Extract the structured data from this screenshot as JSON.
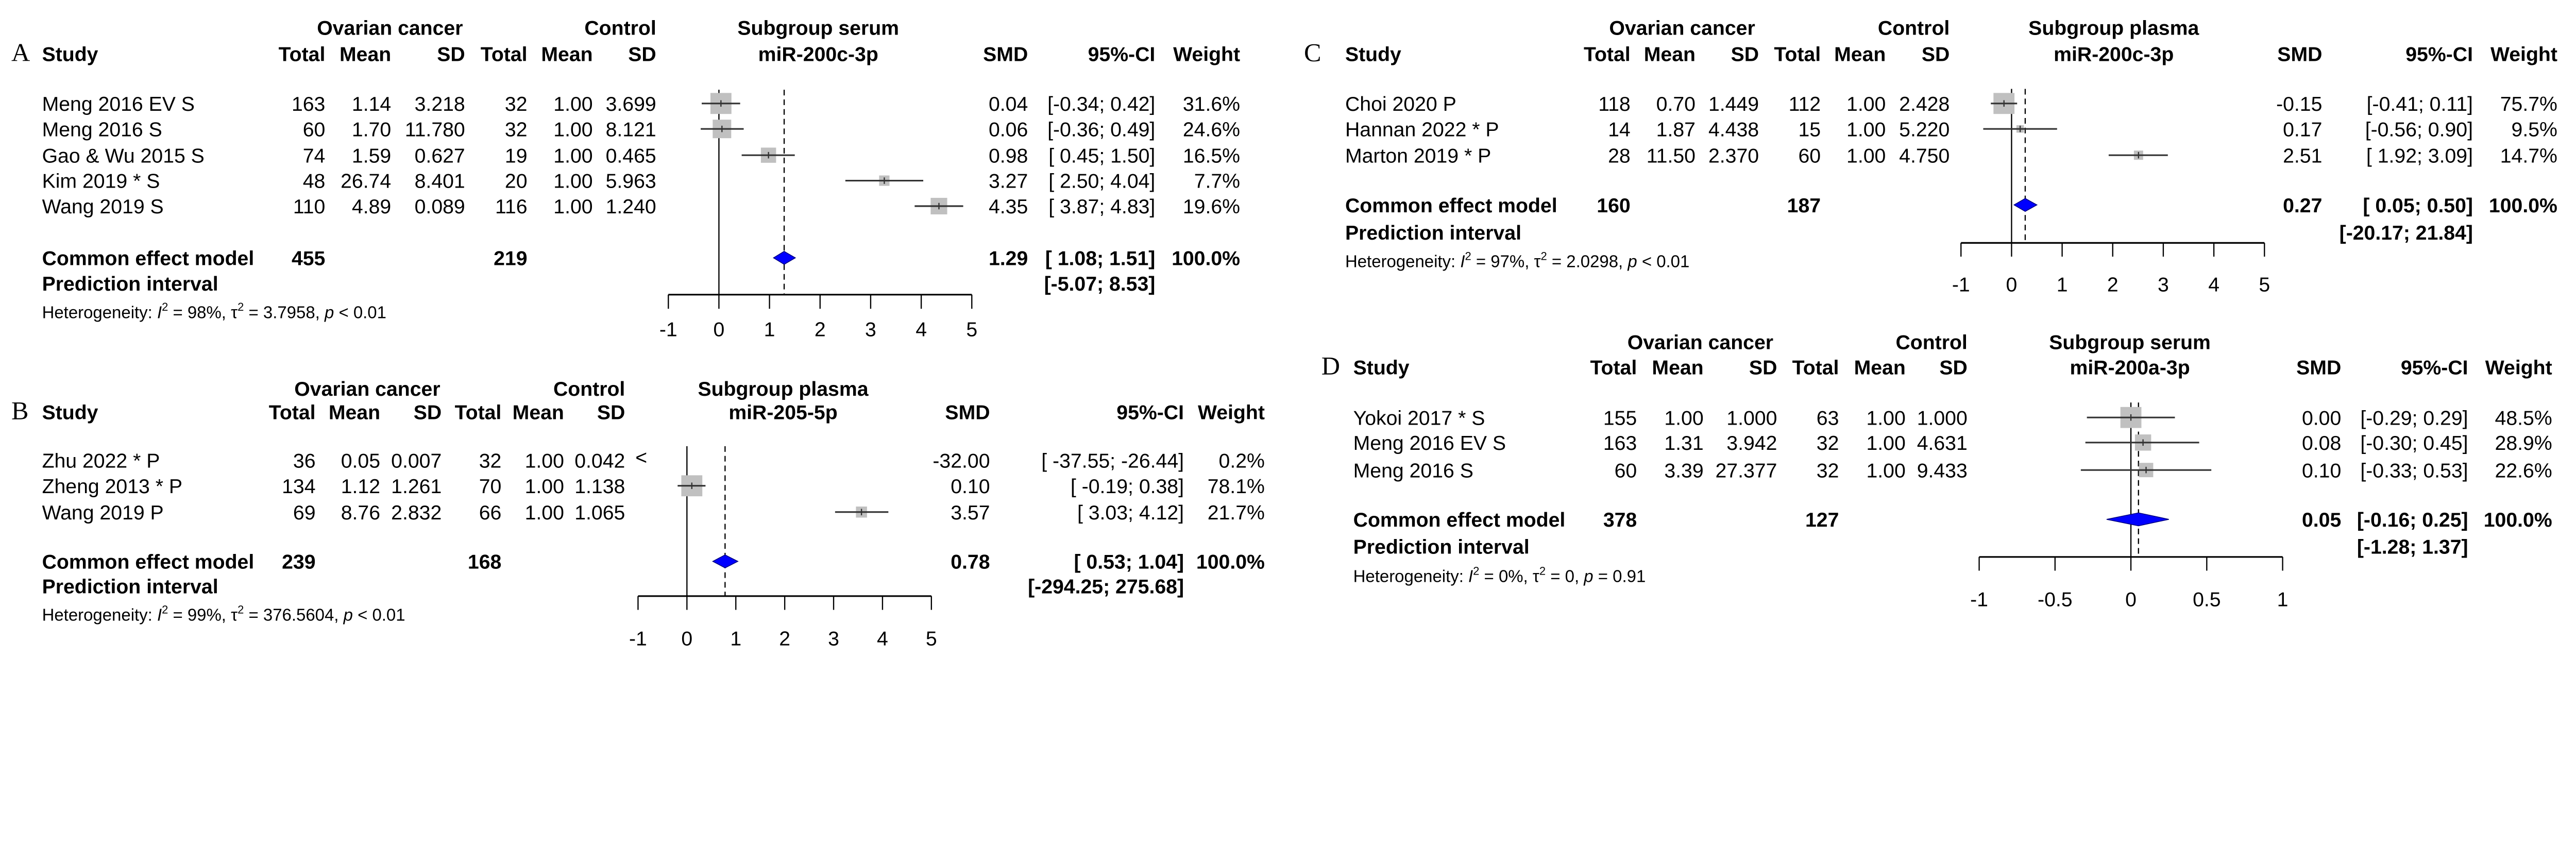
{
  "colors": {
    "square": "#c0c0c0",
    "line": "#333333",
    "diamond": "#0000ff",
    "diamond_outline": "#000080"
  },
  "chart_data": [
    {
      "type": "forest",
      "letter": "A",
      "header": {
        "group1": "Ovarian cancer",
        "group2": "Control",
        "plot_title": "Subgroup serum",
        "plot_subtitle": "miR-200c-3p",
        "study": "Study",
        "total": "Total",
        "mean": "Mean",
        "sd": "SD",
        "smd": "SMD",
        "ci": "95%-CI",
        "weight": "Weight"
      },
      "studies": [
        {
          "study": "Meng 2016 EV S",
          "e_total": "163",
          "e_mean": "1.14",
          "e_sd": "3.218",
          "c_total": "32",
          "c_mean": "1.00",
          "c_sd": "3.699",
          "smd": 0.04,
          "smd_text": "0.04",
          "ci": [
            -0.34,
            0.42
          ],
          "ci_text": "[-0.34; 0.42]",
          "weight": 31.6,
          "weight_text": "31.6%"
        },
        {
          "study": "Meng 2016 S",
          "e_total": "60",
          "e_mean": "1.70",
          "e_sd": "11.780",
          "c_total": "32",
          "c_mean": "1.00",
          "c_sd": "8.121",
          "smd": 0.06,
          "smd_text": "0.06",
          "ci": [
            -0.36,
            0.49
          ],
          "ci_text": "[-0.36; 0.49]",
          "weight": 24.6,
          "weight_text": "24.6%"
        },
        {
          "study": "Gao & Wu 2015 S",
          "e_total": "74",
          "e_mean": "1.59",
          "e_sd": "0.627",
          "c_total": "19",
          "c_mean": "1.00",
          "c_sd": "0.465",
          "smd": 0.98,
          "smd_text": "0.98",
          "ci": [
            0.45,
            1.5
          ],
          "ci_text": "[ 0.45; 1.50]",
          "weight": 16.5,
          "weight_text": "16.5%"
        },
        {
          "study": "Kim 2019 * S",
          "e_total": "48",
          "e_mean": "26.74",
          "e_sd": "8.401",
          "c_total": "20",
          "c_mean": "1.00",
          "c_sd": "5.963",
          "smd": 3.27,
          "smd_text": "3.27",
          "ci": [
            2.5,
            4.04
          ],
          "ci_text": "[ 2.50; 4.04]",
          "weight": 7.7,
          "weight_text": "7.7%"
        },
        {
          "study": "Wang 2019 S",
          "e_total": "110",
          "e_mean": "4.89",
          "e_sd": "0.089",
          "c_total": "116",
          "c_mean": "1.00",
          "c_sd": "1.240",
          "smd": 4.35,
          "smd_text": "4.35",
          "ci": [
            3.87,
            4.83
          ],
          "ci_text": "[ 3.87; 4.83]",
          "weight": 19.6,
          "weight_text": "19.6%"
        }
      ],
      "common": {
        "label": "Common effect model",
        "e_total": "455",
        "c_total": "219",
        "smd": 1.29,
        "smd_text": "1.29",
        "ci": [
          1.08,
          1.51
        ],
        "ci_text": "[ 1.08; 1.51]",
        "weight_text": "100.0%"
      },
      "prediction": {
        "label": "Prediction interval",
        "ci_text": "[-5.07; 8.53]"
      },
      "heterogeneity": {
        "label": "Heterogeneity: ",
        "i2": "98%",
        "tau2": "3.7958",
        "p": "< 0.01"
      },
      "axis": {
        "min": -1,
        "max": 5,
        "ticks": [
          "-1",
          "0",
          "1",
          "2",
          "3",
          "4",
          "5"
        ]
      }
    },
    {
      "type": "forest",
      "letter": "B",
      "header": {
        "group1": "Ovarian cancer",
        "group2": "Control",
        "plot_title": "Subgroup plasma",
        "plot_subtitle": "miR-205-5p",
        "study": "Study",
        "total": "Total",
        "mean": "Mean",
        "sd": "SD",
        "smd": "SMD",
        "ci": "95%-CI",
        "weight": "Weight"
      },
      "studies": [
        {
          "study": "Zhu 2022 * P",
          "e_total": "36",
          "e_mean": "0.05",
          "e_sd": "0.007",
          "c_total": "32",
          "c_mean": "1.00",
          "c_sd": "0.042",
          "smd": -32.0,
          "smd_text": "-32.00",
          "ci": [
            -37.55,
            -26.44
          ],
          "ci_text": "[ -37.55; -26.44]",
          "weight": 0.2,
          "weight_text": "0.2%",
          "offscale_marker": "<"
        },
        {
          "study": "Zheng 2013 * P",
          "e_total": "134",
          "e_mean": "1.12",
          "e_sd": "1.261",
          "c_total": "70",
          "c_mean": "1.00",
          "c_sd": "1.138",
          "smd": 0.1,
          "smd_text": "0.10",
          "ci": [
            -0.19,
            0.38
          ],
          "ci_text": "[ -0.19;  0.38]",
          "weight": 78.1,
          "weight_text": "78.1%"
        },
        {
          "study": "Wang 2019 P",
          "e_total": "69",
          "e_mean": "8.76",
          "e_sd": "2.832",
          "c_total": "66",
          "c_mean": "1.00",
          "c_sd": "1.065",
          "smd": 3.57,
          "smd_text": "3.57",
          "ci": [
            3.03,
            4.12
          ],
          "ci_text": "[  3.03;  4.12]",
          "weight": 21.7,
          "weight_text": "21.7%"
        }
      ],
      "common": {
        "label": "Common effect model",
        "e_total": "239",
        "c_total": "168",
        "smd": 0.78,
        "smd_text": "0.78",
        "ci": [
          0.53,
          1.04
        ],
        "ci_text": "[  0.53;   1.04]",
        "weight_text": "100.0%"
      },
      "prediction": {
        "label": "Prediction interval",
        "ci_text": "[-294.25; 275.68]"
      },
      "heterogeneity": {
        "label": "Heterogeneity: ",
        "i2": "99%",
        "tau2": "376.5604",
        "p": "< 0.01"
      },
      "axis": {
        "min": -1,
        "max": 5,
        "ticks": [
          "-1",
          "0",
          "1",
          "2",
          "3",
          "4",
          "5"
        ]
      }
    },
    {
      "type": "forest",
      "letter": "C",
      "header": {
        "group1": "Ovarian cancer",
        "group2": "Control",
        "plot_title": "Subgroup plasma",
        "plot_subtitle": "miR-200c-3p",
        "study": "Study",
        "total": "Total",
        "mean": "Mean",
        "sd": "SD",
        "smd": "SMD",
        "ci": "95%-CI",
        "weight": "Weight"
      },
      "studies": [
        {
          "study": "Choi 2020 P",
          "e_total": "118",
          "e_mean": "0.70",
          "e_sd": "1.449",
          "c_total": "112",
          "c_mean": "1.00",
          "c_sd": "2.428",
          "smd": -0.15,
          "smd_text": "-0.15",
          "ci": [
            -0.41,
            0.11
          ],
          "ci_text": "[-0.41; 0.11]",
          "weight": 75.7,
          "weight_text": "75.7%"
        },
        {
          "study": "Hannan 2022 * P",
          "e_total": "14",
          "e_mean": "1.87",
          "e_sd": "4.438",
          "c_total": "15",
          "c_mean": "1.00",
          "c_sd": "5.220",
          "smd": 0.17,
          "smd_text": "0.17",
          "ci": [
            -0.56,
            0.9
          ],
          "ci_text": "[-0.56; 0.90]",
          "weight": 9.5,
          "weight_text": "9.5%"
        },
        {
          "study": "Marton 2019 * P",
          "e_total": "28",
          "e_mean": "11.50",
          "e_sd": "2.370",
          "c_total": "60",
          "c_mean": "1.00",
          "c_sd": "4.750",
          "smd": 2.51,
          "smd_text": "2.51",
          "ci": [
            1.92,
            3.09
          ],
          "ci_text": "[ 1.92; 3.09]",
          "weight": 14.7,
          "weight_text": "14.7%"
        }
      ],
      "common": {
        "label": "Common effect model",
        "e_total": "160",
        "c_total": "187",
        "smd": 0.27,
        "smd_text": "0.27",
        "ci": [
          0.05,
          0.5
        ],
        "ci_text": "[ 0.05; 0.50]",
        "weight_text": "100.0%"
      },
      "prediction": {
        "label": "Prediction interval",
        "ci_text": "[-20.17; 21.84]"
      },
      "heterogeneity": {
        "label": "Heterogeneity: ",
        "i2": "97%",
        "tau2": "2.0298",
        "p": "< 0.01"
      },
      "axis": {
        "min": -1,
        "max": 5,
        "ticks": [
          "-1",
          "0",
          "1",
          "2",
          "3",
          "4",
          "5"
        ]
      }
    },
    {
      "type": "forest",
      "letter": "D",
      "header": {
        "group1": "Ovarian cancer",
        "group2": "Control",
        "plot_title": "Subgroup serum",
        "plot_subtitle": "miR-200a-3p",
        "study": "Study",
        "total": "Total",
        "mean": "Mean",
        "sd": "SD",
        "smd": "SMD",
        "ci": "95%-CI",
        "weight": "Weight"
      },
      "studies": [
        {
          "study": "Yokoi 2017 * S",
          "e_total": "155",
          "e_mean": "1.00",
          "e_sd": "1.000",
          "c_total": "63",
          "c_mean": "1.00",
          "c_sd": "1.000",
          "smd": 0.0,
          "smd_text": "0.00",
          "ci": [
            -0.29,
            0.29
          ],
          "ci_text": "[-0.29; 0.29]",
          "weight": 48.5,
          "weight_text": "48.5%"
        },
        {
          "study": "Meng 2016 EV S",
          "e_total": "163",
          "e_mean": "1.31",
          "e_sd": "3.942",
          "c_total": "32",
          "c_mean": "1.00",
          "c_sd": "4.631",
          "smd": 0.08,
          "smd_text": "0.08",
          "ci": [
            -0.3,
            0.45
          ],
          "ci_text": "[-0.30; 0.45]",
          "weight": 28.9,
          "weight_text": "28.9%"
        },
        {
          "study": "Meng 2016 S",
          "e_total": "60",
          "e_mean": "3.39",
          "e_sd": "27.377",
          "c_total": "32",
          "c_mean": "1.00",
          "c_sd": "9.433",
          "smd": 0.1,
          "smd_text": "0.10",
          "ci": [
            -0.33,
            0.53
          ],
          "ci_text": "[-0.33; 0.53]",
          "weight": 22.6,
          "weight_text": "22.6%"
        }
      ],
      "common": {
        "label": "Common effect model",
        "e_total": "378",
        "c_total": "127",
        "smd": 0.05,
        "smd_text": "0.05",
        "ci": [
          -0.16,
          0.25
        ],
        "ci_text": "[-0.16; 0.25]",
        "weight_text": "100.0%"
      },
      "prediction": {
        "label": "Prediction interval",
        "ci_text": "[-1.28; 1.37]"
      },
      "heterogeneity": {
        "label": "Heterogeneity: ",
        "i2": "0%",
        "tau2": "0",
        "p": "= 0.91"
      },
      "axis": {
        "min": -1,
        "max": 1,
        "ticks": [
          "-1",
          "-0.5",
          "0",
          "0.5",
          "1"
        ]
      }
    }
  ]
}
